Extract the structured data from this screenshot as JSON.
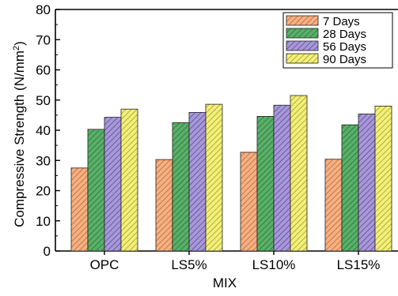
{
  "chart_data": {
    "type": "bar",
    "categories": [
      "OPC",
      "LS5%",
      "LS10%",
      "LS15%"
    ],
    "series": [
      {
        "name": "7 Days",
        "values": [
          27.5,
          30.3,
          32.7,
          30.4
        ],
        "color": "#f4b183",
        "stroke": "#b85a2a"
      },
      {
        "name": "28 Days",
        "values": [
          40.3,
          42.5,
          44.6,
          41.8
        ],
        "color": "#5aaf69",
        "stroke": "#1e6b2c"
      },
      {
        "name": "56 Days",
        "values": [
          44.3,
          45.9,
          48.3,
          45.4
        ],
        "color": "#a898d8",
        "stroke": "#4f3f8f"
      },
      {
        "name": "90 Days",
        "values": [
          47.0,
          48.6,
          51.5,
          48.0
        ],
        "color": "#f2ef7a",
        "stroke": "#9a9320"
      }
    ],
    "xlabel": "MIX",
    "ylabel": "Compressive Strength (N/mm²)",
    "ylabel_main": "Compressive Strength (N/mm",
    "ylabel_sup": "2",
    "ylabel_tail": ")",
    "ylim": [
      0,
      80
    ],
    "yticks": [
      0,
      10,
      20,
      30,
      40,
      50,
      60,
      70,
      80
    ],
    "grid": false,
    "legend": "top-right",
    "fill_pattern": "diagonal-hatch"
  }
}
